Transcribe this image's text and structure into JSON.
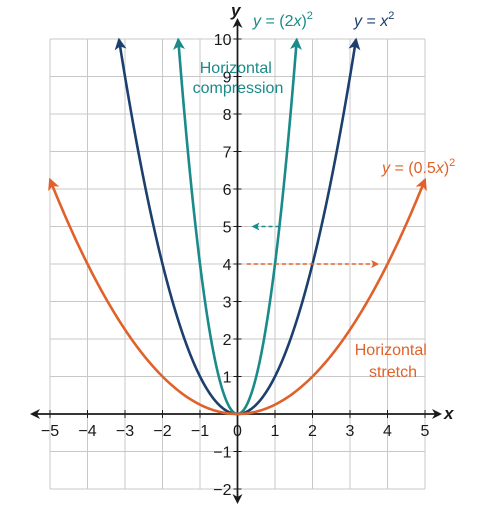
{
  "chart_data": {
    "type": "line",
    "xlabel": "x",
    "ylabel": "y",
    "xlim": [
      -5,
      5
    ],
    "ylim": [
      -2,
      10
    ],
    "grid": true,
    "x_ticks": [
      -5,
      -4,
      -3,
      -2,
      -1,
      1,
      2,
      3,
      4,
      5
    ],
    "y_ticks": [
      -2,
      -1,
      1,
      2,
      3,
      4,
      5,
      6,
      7,
      8,
      9,
      10
    ],
    "origin_label": "0",
    "series": [
      {
        "name": "y = x²",
        "name_parts": {
          "pre": "y",
          "mid": " = ",
          "var": "x",
          "sup": "2",
          "post": ""
        },
        "color": "#1c3f6e",
        "coefficient": 1,
        "x": [
          -3.16,
          -3,
          -2,
          -1,
          0,
          1,
          2,
          3,
          3.16
        ],
        "y": [
          10,
          9,
          4,
          1,
          0,
          1,
          4,
          9,
          10
        ]
      },
      {
        "name": "y = (2x)²",
        "name_parts": {
          "pre": "y",
          "mid": " = (2",
          "var": "x",
          "sup": "2",
          "post": ")"
        },
        "color": "#1a8a8a",
        "coefficient": 4,
        "x": [
          -1.58,
          -1.5,
          -1,
          -0.5,
          0,
          0.5,
          1,
          1.5,
          1.58
        ],
        "y": [
          10,
          9,
          4,
          1,
          0,
          1,
          4,
          9,
          10
        ]
      },
      {
        "name": "y = (0.5x)²",
        "name_parts": {
          "pre": "y",
          "mid": " = (0.5",
          "var": "x",
          "sup": "2",
          "post": ")"
        },
        "color": "#e0622a",
        "coefficient": 0.25,
        "x": [
          -5,
          -4,
          -2,
          0,
          2,
          4,
          5
        ],
        "y": [
          6.25,
          4,
          1,
          0,
          1,
          4,
          6.25
        ]
      }
    ],
    "annotations": [
      {
        "lines": [
          "Horizontal",
          "compression"
        ],
        "color": "#1a8a8a"
      },
      {
        "lines": [
          "Horizontal",
          "stretch"
        ],
        "color": "#e0622a"
      }
    ],
    "arrows": [
      {
        "from": [
          1.12,
          5
        ],
        "to": [
          0.4,
          5
        ],
        "color": "#1a8a8a"
      },
      {
        "from": [
          0.25,
          4
        ],
        "to": [
          3.75,
          4
        ],
        "color": "#e0622a"
      }
    ]
  }
}
